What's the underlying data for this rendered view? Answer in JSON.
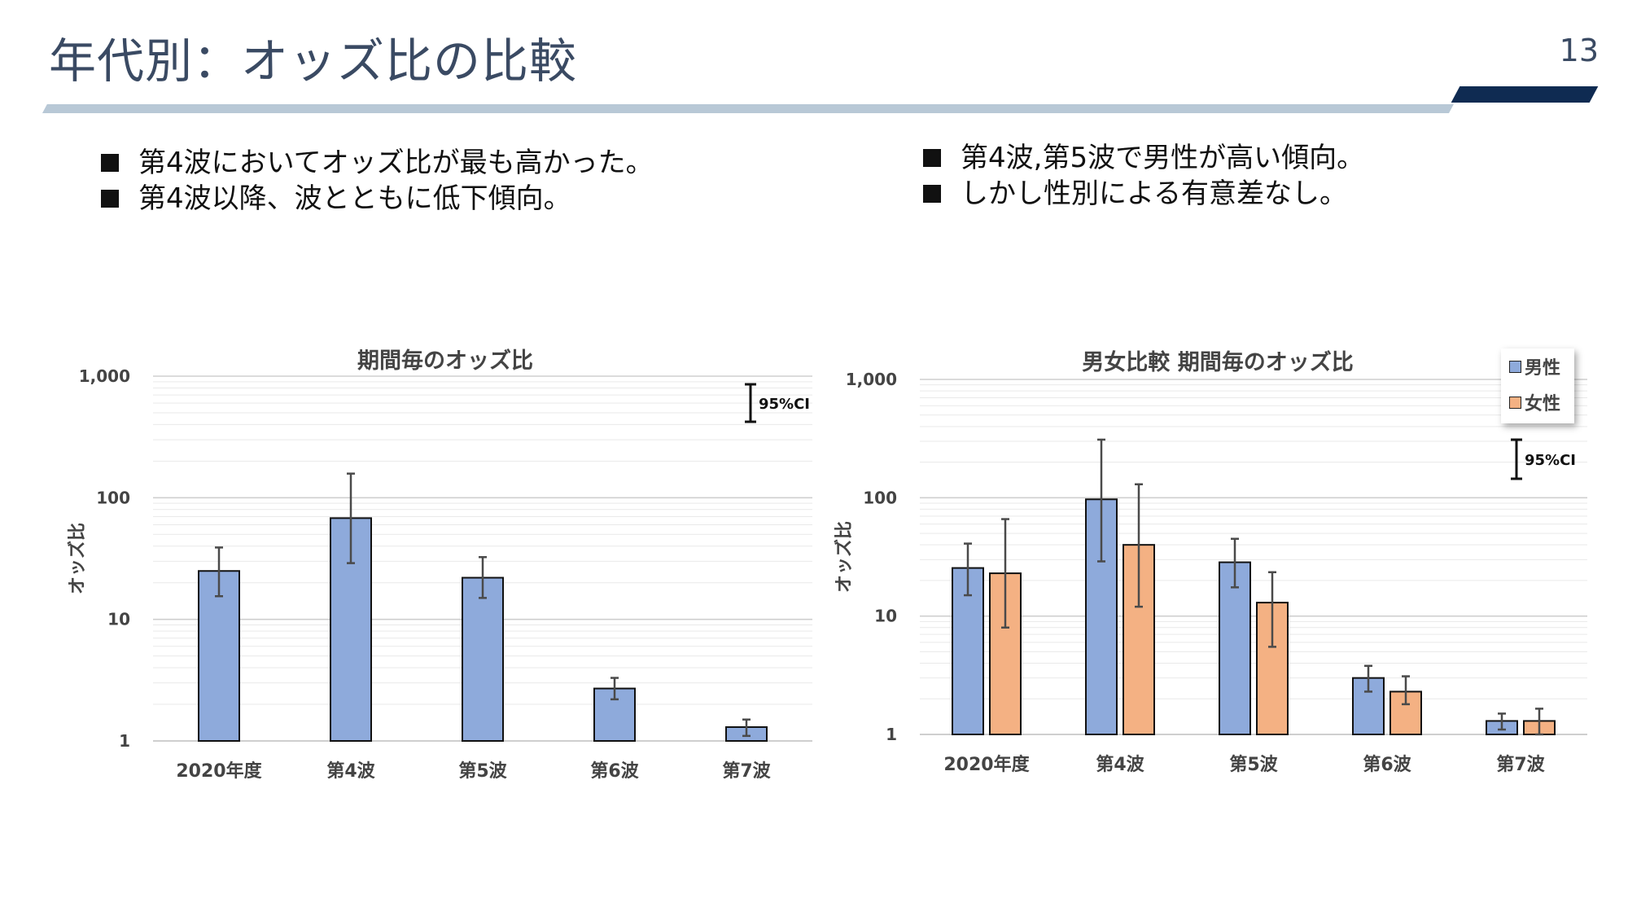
{
  "header": {
    "title": "年代別：オッズ比の比較",
    "page_number": "13"
  },
  "bullets_left": [
    "第4波においてオッズ比が最も高かった。",
    "第4波以降、波とともに低下傾向。"
  ],
  "bullets_right": [
    "第4波,第5波で男性が高い傾向。",
    "しかし性別による有意差なし。"
  ],
  "colors": {
    "male": "#8eaadb",
    "female": "#f4b183",
    "axis_text": "#444444"
  },
  "chart_data": [
    {
      "type": "bar",
      "title": "期間毎のオッズ比",
      "ylabel": "オッズ比",
      "yscale": "log",
      "ylim": [
        1,
        1000
      ],
      "yticks": [
        "1",
        "10",
        "100",
        "1,000"
      ],
      "categories": [
        "2020年度",
        "第4波",
        "第5波",
        "第6波",
        "第7波"
      ],
      "series": [
        {
          "values": [
            25,
            68,
            22,
            2.7,
            1.3
          ],
          "ci_low": [
            15.5,
            29,
            15,
            2.2,
            1.1
          ],
          "ci_high": [
            39,
            158,
            32.5,
            3.3,
            1.5
          ]
        }
      ],
      "ci_legend": "95%CI"
    },
    {
      "type": "bar",
      "title": "男女比較 期間毎のオッズ比",
      "ylabel": "オッズ比",
      "yscale": "log",
      "ylim": [
        1,
        1000
      ],
      "yticks": [
        "1",
        "10",
        "100",
        "1,000"
      ],
      "categories": [
        "2020年度",
        "第4波",
        "第5波",
        "第6波",
        "第7波"
      ],
      "series": [
        {
          "name": "男性",
          "values": [
            25.5,
            97,
            28.5,
            3.0,
            1.3
          ],
          "ci_low": [
            15,
            29,
            17.5,
            2.3,
            1.1
          ],
          "ci_high": [
            41,
            310,
            45,
            3.8,
            1.5
          ]
        },
        {
          "name": "女性",
          "values": [
            23,
            40,
            13,
            2.3,
            1.3
          ],
          "ci_low": [
            8,
            12,
            5.5,
            1.8,
            1.0
          ],
          "ci_high": [
            66,
            130,
            23.5,
            3.1,
            1.65
          ]
        }
      ],
      "ci_legend": "95%CI"
    }
  ]
}
